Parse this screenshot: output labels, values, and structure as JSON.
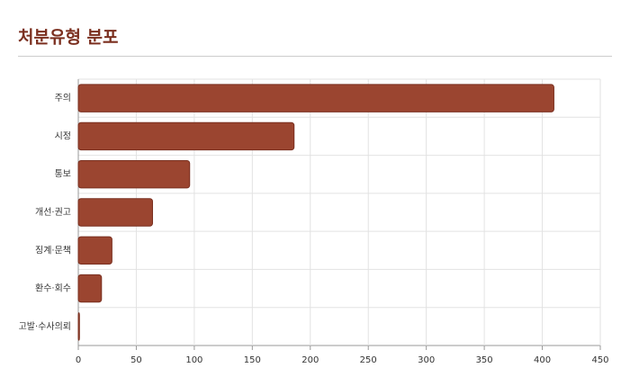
{
  "chart_data": {
    "type": "bar",
    "orientation": "horizontal",
    "title": "처분유형 분포",
    "categories": [
      "주의",
      "시정",
      "통보",
      "개선·권고",
      "징계·문책",
      "환수·회수",
      "고발·수사의뢰"
    ],
    "values": [
      410,
      186,
      96,
      64,
      29,
      20,
      1
    ],
    "color": "#9b4530",
    "xlim": [
      0,
      450
    ],
    "xticks": [
      0,
      50,
      100,
      150,
      200,
      250,
      300,
      350,
      400,
      450
    ],
    "grid": true
  }
}
